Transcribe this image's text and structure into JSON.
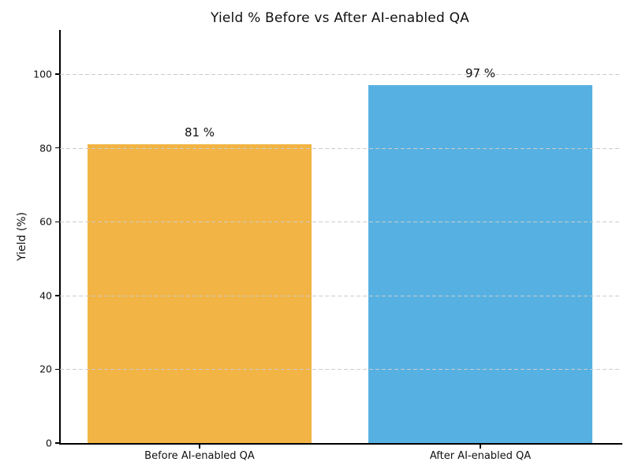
{
  "chart_data": {
    "type": "bar",
    "title": "Yield % Before vs After AI-enabled QA",
    "xlabel": "",
    "ylabel": "Yield (%)",
    "categories": [
      "Before AI-enabled QA",
      "After AI-enabled QA"
    ],
    "values": [
      81,
      97
    ],
    "value_labels": [
      "81 %",
      "97 %"
    ],
    "bar_colors": [
      "#F2B444",
      "#56B1E2"
    ],
    "yticks": [
      0,
      20,
      40,
      60,
      80,
      100
    ],
    "ytick_labels": [
      "0",
      "20",
      "40",
      "60",
      "80",
      "100"
    ],
    "ylim": [
      0,
      112
    ],
    "grid": "horizontal-dashed",
    "grid_color": "#cccccc",
    "grid_above_bars": true,
    "legend": "none",
    "background_color": "#ffffff",
    "spine_color": "#000000"
  }
}
